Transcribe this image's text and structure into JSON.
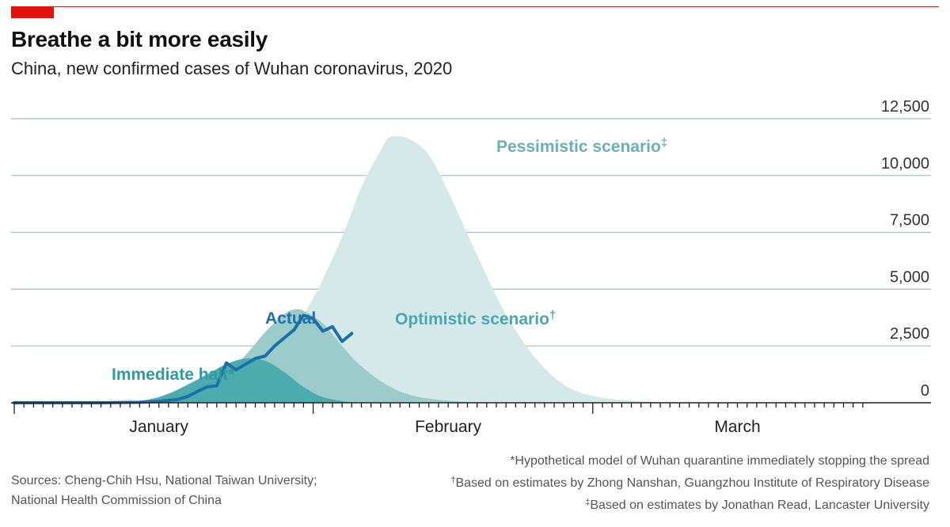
{
  "header": {
    "title": "Breathe a bit more easily",
    "subtitle": "China, new confirmed cases of Wuhan coronavirus, 2020"
  },
  "chart_data": {
    "type": "area",
    "title": "Breathe a bit more easily",
    "subtitle": "China, new confirmed cases of Wuhan coronavirus, 2020",
    "y_ticks": [
      "12,500",
      "10,000",
      "7,500",
      "5,000",
      "2,500",
      "0"
    ],
    "y_tick_values": [
      12500,
      10000,
      7500,
      5000,
      2500,
      0
    ],
    "ylim": [
      0,
      12500
    ],
    "x_month_labels": [
      "January",
      "February",
      "March"
    ],
    "grid": true,
    "series": [
      {
        "name": "Pessimistic scenario",
        "marker": "‡",
        "color": "#d5e9ea",
        "x": [
          "Jan 1",
          "Jan 12",
          "Jan 18",
          "Jan 22",
          "Jan 26",
          "Jan 29",
          "Feb 1",
          "Feb 4",
          "Feb 6",
          "Feb 8",
          "Feb 9",
          "Feb 11",
          "Feb 13",
          "Feb 15",
          "Feb 18",
          "Feb 21",
          "Feb 24",
          "Feb 27",
          "Mar 1",
          "Mar 5",
          "Mar 10"
        ],
        "values": [
          0,
          30,
          150,
          450,
          1300,
          2600,
          4600,
          7300,
          9500,
          11100,
          11700,
          11600,
          10900,
          9300,
          6500,
          3900,
          2000,
          800,
          300,
          90,
          10
        ]
      },
      {
        "name": "Optimistic scenario",
        "marker": "†",
        "color": "#9ccbcc",
        "x": [
          "Jan 1",
          "Jan 12",
          "Jan 16",
          "Jan 20",
          "Jan 23",
          "Jan 25",
          "Jan 27",
          "Jan 29",
          "Jan 30",
          "Jan 31",
          "Feb 2",
          "Feb 4",
          "Feb 6",
          "Feb 9",
          "Feb 12",
          "Feb 16",
          "Feb 20"
        ],
        "values": [
          0,
          30,
          150,
          500,
          1300,
          2100,
          3100,
          3900,
          4100,
          4050,
          3500,
          2500,
          1600,
          700,
          250,
          60,
          0
        ]
      },
      {
        "name": "Immediate halt",
        "marker": "*",
        "color": "#4cabad",
        "x": [
          "Jan 1",
          "Jan 12",
          "Jan 15",
          "Jan 17",
          "Jan 19",
          "Jan 21",
          "Jan 23",
          "Jan 25",
          "Jan 27",
          "Jan 29",
          "Jan 31",
          "Feb 2",
          "Feb 5"
        ],
        "values": [
          0,
          30,
          150,
          400,
          800,
          1250,
          1700,
          1950,
          1850,
          1350,
          700,
          250,
          0
        ]
      },
      {
        "name": "Actual",
        "marker": "",
        "color": "#1d6fa8",
        "x": [
          "Jan 1",
          "Jan 10",
          "Jan 14",
          "Jan 16",
          "Jan 18",
          "Jan 19",
          "Jan 20",
          "Jan 21",
          "Jan 22",
          "Jan 23",
          "Jan 24",
          "Jan 25",
          "Jan 26",
          "Jan 27",
          "Jan 28",
          "Jan 29",
          "Jan 30",
          "Jan 31",
          "Feb 1",
          "Feb 2",
          "Feb 3",
          "Feb 4",
          "Feb 5"
        ],
        "values": [
          0,
          0,
          20,
          60,
          150,
          280,
          500,
          700,
          750,
          1750,
          1450,
          1700,
          1950,
          2050,
          2500,
          2850,
          3200,
          3850,
          3700,
          3150,
          3350,
          2700,
          3050
        ]
      }
    ]
  },
  "footer": {
    "sources_label": "Sources: Cheng-Chih Hsu, National Taiwan University;",
    "sources_label_2": "National Health Commission of China",
    "note_1": "*Hypothetical model of Wuhan quarantine immediately stopping the spread",
    "note_2": "Based on estimates by Zhong Nanshan, Guangzhou Institute of Respiratory Disease",
    "note_3": "Based on estimates by Jonathan Read, Lancaster University",
    "mark_2": "†",
    "mark_3": "‡"
  }
}
